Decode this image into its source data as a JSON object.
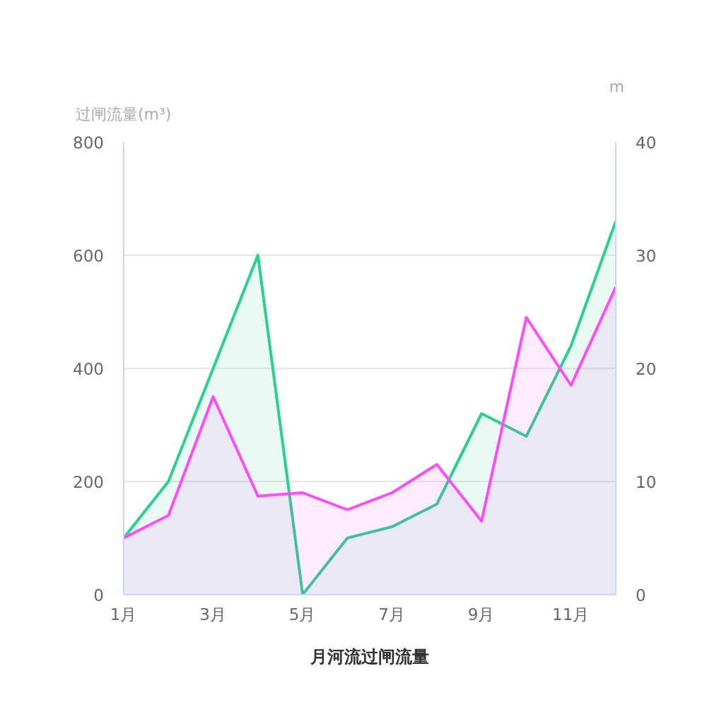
{
  "chart_data": {
    "type": "area",
    "title": "月河流过闸流量",
    "ylabel": "过闸流量(m³)",
    "y2label": "m",
    "categories": [
      "1月",
      null,
      "3月",
      null,
      "5月",
      null,
      "7月",
      null,
      "9月",
      null,
      "11月",
      null
    ],
    "series": [
      {
        "color": "#2bcf8f",
        "values": [
          100,
          200,
          400,
          600,
          0,
          100,
          120,
          160,
          320,
          280,
          440,
          660
        ]
      },
      {
        "color": "#ff4cff",
        "axis": "y2",
        "values": [
          5,
          7,
          17.5,
          8.7,
          9,
          7.5,
          9,
          11.5,
          6.5,
          24.5,
          18.5,
          27.2
        ]
      }
    ],
    "ylim": [
      0,
      800
    ],
    "yticks": [
      0,
      200,
      400,
      600,
      800
    ],
    "y2lim": [
      0,
      40
    ],
    "y2ticks": [
      0,
      10,
      20,
      30,
      40
    ],
    "grid": "y"
  }
}
